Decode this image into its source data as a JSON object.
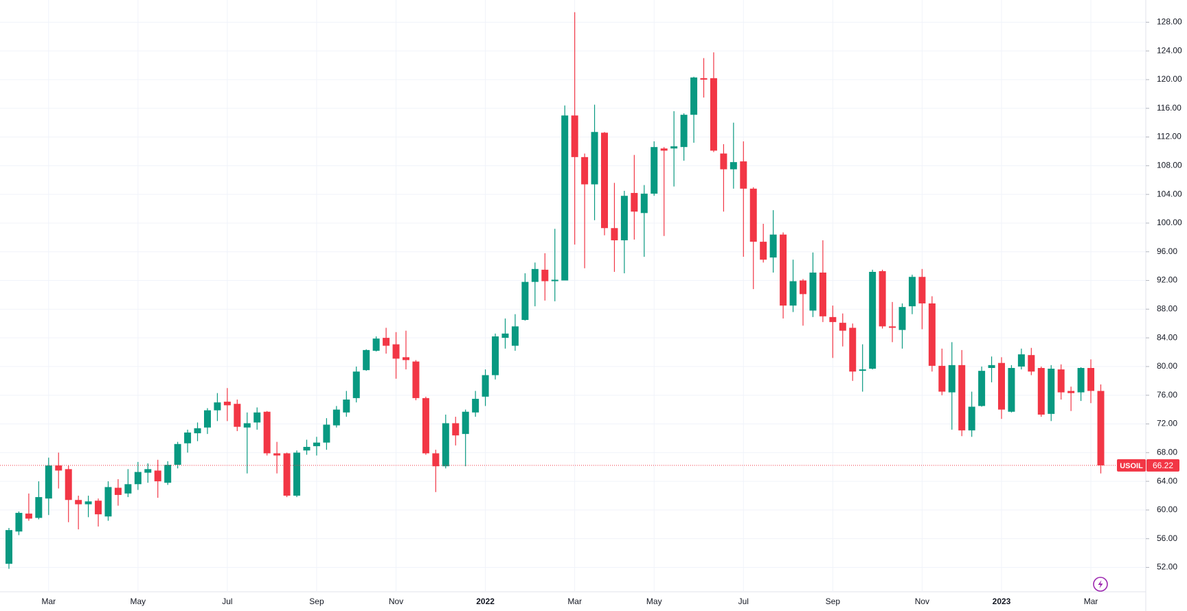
{
  "chart_data": {
    "type": "candlestick",
    "symbol": "USOIL",
    "up_color": "#089981",
    "down_color": "#f23645",
    "grid": true,
    "categories": [
      null,
      null,
      null,
      null,
      "Mar",
      null,
      null,
      null,
      null,
      null,
      null,
      null,
      null,
      "May",
      null,
      null,
      null,
      null,
      null,
      null,
      null,
      null,
      "Jul",
      null,
      null,
      null,
      null,
      null,
      null,
      null,
      null,
      "Sep",
      null,
      null,
      null,
      null,
      null,
      null,
      null,
      "Nov",
      null,
      null,
      null,
      null,
      null,
      null,
      null,
      null,
      "2022",
      null,
      null,
      null,
      null,
      null,
      null,
      null,
      null,
      "Mar",
      null,
      null,
      null,
      null,
      null,
      null,
      null,
      "May",
      null,
      null,
      null,
      null,
      null,
      null,
      null,
      null,
      "Jul",
      null,
      null,
      null,
      null,
      null,
      null,
      null,
      null,
      "Sep",
      null,
      null,
      null,
      null,
      null,
      null,
      null,
      null,
      "Nov",
      null,
      null,
      null,
      null,
      null,
      null,
      null,
      "2023",
      null,
      null,
      null,
      null,
      null,
      null,
      null,
      null,
      "Mar",
      null
    ],
    "open": [
      52.5,
      57,
      59.5,
      58.9,
      61.6,
      66.2,
      65.7,
      61.4,
      60.8,
      61.3,
      59.1,
      63.1,
      62.3,
      63.6,
      65.2,
      65.5,
      63.8,
      66.3,
      69.3,
      70.7,
      71.5,
      73.9,
      75.1,
      74.8,
      71.5,
      72.2,
      73.7,
      67.9,
      67.9,
      62,
      68.3,
      68.9,
      69.4,
      71.8,
      73.6,
      75.6,
      79.5,
      82.2,
      84,
      83.1,
      81.3,
      80.7,
      75.6,
      67.9,
      66.1,
      72.1,
      70.6,
      73.6,
      75.8,
      78.8,
      84,
      82.9,
      86.5,
      91.8,
      93.5,
      91.9,
      92,
      115,
      109.2,
      105.4,
      112.6,
      99.3,
      97.6,
      104.2,
      101.4,
      104.1,
      110.4,
      110.4,
      110.6,
      115.1,
      120.2,
      120.2,
      109.7,
      107.5,
      108.6,
      104.8,
      97.4,
      95.2,
      98.4,
      88.5,
      92,
      87.8,
      93.1,
      86.9,
      86.1,
      85.4,
      79.4,
      79.7,
      93.3,
      85.6,
      85.1,
      88.4,
      92.5,
      88.8,
      80.1,
      76.4,
      80.2,
      71.1,
      74.5,
      79.8,
      80.5,
      73.7,
      80,
      81.6,
      79.8,
      73.4,
      79.6,
      76.6,
      76.4,
      79.8,
      76.6
    ],
    "high": [
      57.5,
      59.8,
      62.3,
      64,
      67.3,
      68,
      66.2,
      62,
      62,
      61.6,
      64,
      64.3,
      65.7,
      66.7,
      66.5,
      67,
      66.8,
      69.5,
      71.2,
      72.2,
      74.2,
      76.3,
      77,
      75.4,
      73.6,
      74.3,
      73.8,
      69.5,
      68,
      68.3,
      69.8,
      70.2,
      72.8,
      74.5,
      76.6,
      80,
      82.4,
      84.2,
      85.4,
      84.8,
      85,
      80.9,
      75.8,
      68.4,
      73.3,
      73,
      74,
      76.6,
      79.6,
      84.6,
      86.7,
      87.3,
      93,
      94.5,
      95.8,
      99.2,
      116.4,
      129.4,
      109.7,
      116.5,
      112.7,
      105.6,
      104.5,
      109.5,
      105.3,
      111.4,
      110.6,
      115.6,
      115.3,
      120.4,
      123,
      123.8,
      111,
      114,
      111.4,
      105,
      99.9,
      101.8,
      98.7,
      94.9,
      92.2,
      95.9,
      97.6,
      88.5,
      87.4,
      86,
      83.1,
      93.5,
      93.5,
      89,
      88.8,
      92.8,
      93.6,
      89.8,
      82.5,
      83.4,
      82.3,
      76.5,
      80,
      81.4,
      81.3,
      80.2,
      82.5,
      82.6,
      80,
      80.2,
      80.3,
      77.2,
      79.9,
      81,
      77.5
    ],
    "low": [
      51.8,
      56.5,
      58.5,
      58.7,
      59.3,
      63,
      58.3,
      57.3,
      59,
      57.7,
      58.5,
      60.6,
      61.8,
      62.8,
      63.8,
      61.7,
      63.5,
      65.8,
      68,
      69.6,
      70.6,
      72.4,
      72.4,
      71,
      65.1,
      71.2,
      67.6,
      65.1,
      61.8,
      61.8,
      67.7,
      67.6,
      68.4,
      71.5,
      73,
      75,
      79.4,
      82.1,
      81.8,
      78.3,
      79.6,
      75.3,
      67.7,
      62.5,
      65.8,
      69,
      66.1,
      73,
      74.5,
      78.2,
      82.5,
      82.2,
      86.4,
      88.4,
      89.2,
      89.1,
      92,
      97,
      93.7,
      100.4,
      98.3,
      93.2,
      93,
      97.7,
      95.3,
      103.8,
      98.2,
      105.1,
      108.7,
      111.2,
      117.5,
      109.9,
      101.6,
      104.8,
      95.3,
      90.8,
      94.5,
      93.1,
      86.7,
      87.6,
      85.7,
      86.9,
      86.2,
      81.2,
      82.8,
      78,
      76.5,
      79.6,
      85.3,
      83.4,
      82.5,
      87.3,
      85.2,
      79.3,
      76,
      71.2,
      70.3,
      70.2,
      74.4,
      77.8,
      72.7,
      73.6,
      79.6,
      78.8,
      73,
      72.4,
      75.4,
      73.8,
      75.2,
      74.9,
      65.1
    ],
    "close": [
      57.2,
      59.6,
      58.8,
      61.8,
      66.2,
      65.5,
      61.4,
      60.8,
      61.2,
      59.4,
      63.2,
      62.1,
      63.6,
      65.3,
      65.7,
      64,
      66.3,
      69.2,
      70.8,
      71.4,
      73.9,
      75,
      74.6,
      71.6,
      72.1,
      73.6,
      67.9,
      67.6,
      62,
      68,
      68.8,
      69.4,
      71.9,
      74,
      75.4,
      79.3,
      82.3,
      83.9,
      82.9,
      81.1,
      80.9,
      75.6,
      67.9,
      66.1,
      72.1,
      70.4,
      73.7,
      75.5,
      78.8,
      84.2,
      84.6,
      85.6,
      91.8,
      93.6,
      91.9,
      92.1,
      115,
      109.2,
      105.4,
      112.7,
      99.3,
      97.6,
      103.8,
      101.6,
      104.1,
      110.6,
      110.1,
      110.7,
      115.1,
      120.3,
      120,
      110.1,
      107.5,
      108.5,
      104.8,
      97.4,
      94.9,
      98.4,
      88.5,
      91.9,
      90.1,
      93.1,
      87,
      86.2,
      85,
      79.3,
      79.6,
      93.2,
      85.6,
      85.4,
      88.3,
      92.5,
      88.8,
      80.1,
      76.5,
      80.2,
      71.1,
      74.4,
      79.4,
      80.2,
      74,
      79.8,
      81.7,
      79.3,
      73.3,
      79.7,
      76.4,
      76.3,
      79.8,
      76.6,
      66.22
    ],
    "ylim": [
      48.6,
      131.1
    ],
    "yticks": [
      {
        "value": 52,
        "label": "52.00"
      },
      {
        "value": 56,
        "label": "56.00"
      },
      {
        "value": 60,
        "label": "60.00"
      },
      {
        "value": 64,
        "label": "64.00"
      },
      {
        "value": 68,
        "label": "68.00"
      },
      {
        "value": 72,
        "label": "72.00"
      },
      {
        "value": 76,
        "label": "76.00"
      },
      {
        "value": 80,
        "label": "80.00"
      },
      {
        "value": 84,
        "label": "84.00"
      },
      {
        "value": 88,
        "label": "88.00"
      },
      {
        "value": 92,
        "label": "92.00"
      },
      {
        "value": 96,
        "label": "96.00"
      },
      {
        "value": 100,
        "label": "100.00"
      },
      {
        "value": 104,
        "label": "104.00"
      },
      {
        "value": 108,
        "label": "108.00"
      },
      {
        "value": 112,
        "label": "112.00"
      },
      {
        "value": 116,
        "label": "116.00"
      },
      {
        "value": 120,
        "label": "120.00"
      },
      {
        "value": 124,
        "label": "124.00"
      },
      {
        "value": 128,
        "label": "128.00"
      }
    ],
    "last_price": {
      "value": 66.22,
      "label": "66.22"
    }
  }
}
